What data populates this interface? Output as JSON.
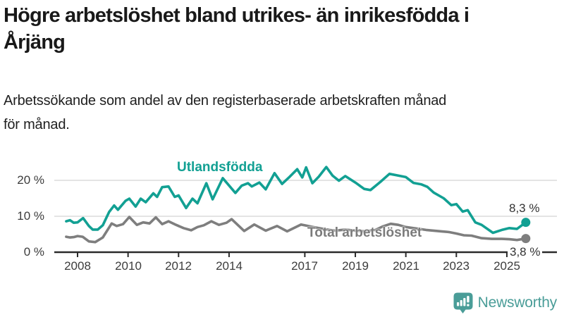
{
  "header": {
    "title_lines": [
      "Högre arbetslöshet bland utrikes- än inrikesfödda i",
      "Årjäng"
    ],
    "subtitle_lines": [
      "Arbetssökande som andel av den registerbaserade arbetskraften månad",
      "för månad."
    ]
  },
  "chart_data": {
    "type": "line",
    "title": "Högre arbetslöshet bland utrikes- än inrikesfödda i Årjäng",
    "subtitle": "Arbetssökande som andel av den registerbaserade arbetskraften månad för månad.",
    "unit": "%",
    "xlabel": "",
    "ylabel": "",
    "xlim": [
      2007.4,
      2026.1
    ],
    "ylim": [
      0,
      25
    ],
    "grid": "horizontal",
    "grid_color": "#dcdcdc",
    "axis_color": "#2b2b2b",
    "y_ticks": [
      {
        "value": 0,
        "label": "0 %"
      },
      {
        "value": 10,
        "label": "10 %"
      },
      {
        "value": 20,
        "label": "20 %"
      }
    ],
    "x_ticks": [
      2008,
      2010,
      2012,
      2014,
      2017,
      2019,
      2021,
      2023,
      2025
    ],
    "x_tick_labels": [
      "2008",
      "2010",
      "2012",
      "2014",
      "2017",
      "2019",
      "2021",
      "2023",
      "2025"
    ],
    "series": [
      {
        "name": "Utlandsfödda",
        "color": "#12a093",
        "end_label": "8,3 %",
        "end_value": 8.3,
        "points": [
          [
            2007.55,
            8.6
          ],
          [
            2007.7,
            8.9
          ],
          [
            2007.85,
            8.2
          ],
          [
            2008.0,
            8.3
          ],
          [
            2008.22,
            9.5
          ],
          [
            2008.45,
            7.3
          ],
          [
            2008.6,
            6.3
          ],
          [
            2008.8,
            6.3
          ],
          [
            2009.0,
            7.5
          ],
          [
            2009.25,
            11.2
          ],
          [
            2009.45,
            13.0
          ],
          [
            2009.6,
            11.8
          ],
          [
            2009.9,
            14.3
          ],
          [
            2010.05,
            14.9
          ],
          [
            2010.3,
            12.7
          ],
          [
            2010.5,
            14.9
          ],
          [
            2010.7,
            13.9
          ],
          [
            2011.0,
            16.4
          ],
          [
            2011.15,
            15.4
          ],
          [
            2011.35,
            18.1
          ],
          [
            2011.6,
            18.3
          ],
          [
            2011.85,
            15.4
          ],
          [
            2012.0,
            15.8
          ],
          [
            2012.3,
            12.3
          ],
          [
            2012.55,
            14.9
          ],
          [
            2012.75,
            13.6
          ],
          [
            2013.1,
            19.2
          ],
          [
            2013.35,
            14.7
          ],
          [
            2013.75,
            20.6
          ],
          [
            2014.25,
            16.5
          ],
          [
            2014.5,
            18.5
          ],
          [
            2014.75,
            19.2
          ],
          [
            2014.9,
            18.3
          ],
          [
            2015.2,
            19.4
          ],
          [
            2015.45,
            17.5
          ],
          [
            2015.8,
            22.0
          ],
          [
            2016.1,
            19.0
          ],
          [
            2016.4,
            21.0
          ],
          [
            2016.7,
            23.1
          ],
          [
            2016.9,
            20.8
          ],
          [
            2017.05,
            23.6
          ],
          [
            2017.3,
            19.2
          ],
          [
            2017.55,
            21.0
          ],
          [
            2017.85,
            23.7
          ],
          [
            2018.1,
            21.3
          ],
          [
            2018.35,
            19.9
          ],
          [
            2018.6,
            21.2
          ],
          [
            2019.0,
            19.4
          ],
          [
            2019.35,
            17.6
          ],
          [
            2019.6,
            17.3
          ],
          [
            2020.0,
            19.6
          ],
          [
            2020.35,
            21.8
          ],
          [
            2020.65,
            21.4
          ],
          [
            2021.0,
            20.9
          ],
          [
            2021.3,
            19.3
          ],
          [
            2021.6,
            18.9
          ],
          [
            2021.85,
            18.2
          ],
          [
            2022.1,
            16.6
          ],
          [
            2022.5,
            15.0
          ],
          [
            2022.8,
            13.1
          ],
          [
            2023.0,
            13.4
          ],
          [
            2023.25,
            11.3
          ],
          [
            2023.45,
            11.7
          ],
          [
            2023.75,
            8.3
          ],
          [
            2024.0,
            7.6
          ],
          [
            2024.45,
            5.4
          ],
          [
            2024.8,
            6.2
          ],
          [
            2025.1,
            6.7
          ],
          [
            2025.4,
            6.5
          ],
          [
            2025.75,
            8.3
          ]
        ]
      },
      {
        "name": "Total arbetslöshet",
        "color": "#7e7e7e",
        "end_label": "3,8 %",
        "end_value": 3.8,
        "points": [
          [
            2007.55,
            4.3
          ],
          [
            2007.7,
            4.1
          ],
          [
            2007.85,
            4.2
          ],
          [
            2008.0,
            4.5
          ],
          [
            2008.2,
            4.3
          ],
          [
            2008.45,
            3.0
          ],
          [
            2008.7,
            2.8
          ],
          [
            2009.0,
            4.1
          ],
          [
            2009.35,
            8.0
          ],
          [
            2009.55,
            7.3
          ],
          [
            2009.8,
            7.8
          ],
          [
            2010.05,
            9.8
          ],
          [
            2010.35,
            7.6
          ],
          [
            2010.6,
            8.3
          ],
          [
            2010.85,
            8.0
          ],
          [
            2011.1,
            9.7
          ],
          [
            2011.35,
            7.8
          ],
          [
            2011.6,
            8.6
          ],
          [
            2011.9,
            7.6
          ],
          [
            2012.2,
            6.7
          ],
          [
            2012.5,
            6.1
          ],
          [
            2012.75,
            7.0
          ],
          [
            2013.0,
            7.5
          ],
          [
            2013.3,
            8.6
          ],
          [
            2013.6,
            7.6
          ],
          [
            2013.9,
            8.2
          ],
          [
            2014.1,
            9.2
          ],
          [
            2014.6,
            5.9
          ],
          [
            2015.0,
            7.7
          ],
          [
            2015.45,
            6.0
          ],
          [
            2015.9,
            7.3
          ],
          [
            2016.3,
            5.8
          ],
          [
            2016.85,
            7.7
          ],
          [
            2017.4,
            6.9
          ],
          [
            2017.8,
            6.4
          ],
          [
            2018.2,
            6.0
          ],
          [
            2018.6,
            6.3
          ],
          [
            2019.0,
            6.0
          ],
          [
            2019.4,
            5.8
          ],
          [
            2019.8,
            6.2
          ],
          [
            2020.1,
            7.2
          ],
          [
            2020.4,
            7.9
          ],
          [
            2020.7,
            7.6
          ],
          [
            2021.0,
            7.0
          ],
          [
            2021.4,
            6.6
          ],
          [
            2021.8,
            6.2
          ],
          [
            2022.1,
            6.0
          ],
          [
            2022.4,
            5.8
          ],
          [
            2022.7,
            5.6
          ],
          [
            2023.0,
            5.2
          ],
          [
            2023.3,
            4.7
          ],
          [
            2023.6,
            4.6
          ],
          [
            2024.0,
            3.9
          ],
          [
            2024.4,
            3.7
          ],
          [
            2024.8,
            3.7
          ],
          [
            2025.1,
            3.6
          ],
          [
            2025.4,
            3.4
          ],
          [
            2025.75,
            3.8
          ]
        ]
      }
    ]
  },
  "footer": {
    "brand": "Newsworthy",
    "brand_color": "#4a9d98"
  }
}
